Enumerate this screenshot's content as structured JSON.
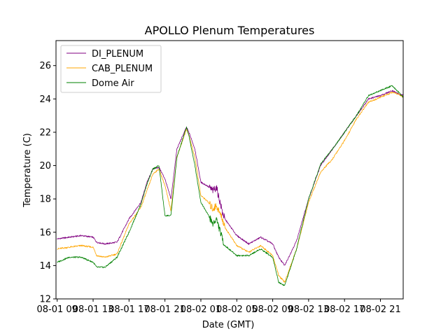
{
  "chart_data": {
    "type": "line",
    "title": "APOLLO Plenum Temperatures",
    "xlabel": "Date (GMT)",
    "ylabel": "Temperature (C)",
    "xlim": [
      -0.1,
      28.9
    ],
    "ylim": [
      12,
      27.5
    ],
    "x_ticks": [
      {
        "at": 0,
        "label": "08-01 09"
      },
      {
        "at": 3,
        "label": "08-01 13"
      },
      {
        "at": 6,
        "label": "08-01 17"
      },
      {
        "at": 9,
        "label": "08-01 21"
      },
      {
        "at": 12,
        "label": "08-02 01"
      },
      {
        "at": 15,
        "label": "08-02 05"
      },
      {
        "at": 18,
        "label": "08-02 09"
      },
      {
        "at": 21,
        "label": "08-02 13"
      },
      {
        "at": 24,
        "label": "08-02 17"
      },
      {
        "at": 27,
        "label": "08-02 21"
      }
    ],
    "y_ticks": [
      12,
      14,
      16,
      18,
      20,
      22,
      24,
      26
    ],
    "legend_position": "top-left",
    "series": [
      {
        "name": "DI_PLENUM",
        "color": "#800080",
        "x": [
          0,
          1,
          2,
          3,
          3.3,
          4,
          5,
          6,
          7,
          7.5,
          8,
          8.5,
          9,
          9.5,
          10,
          10.8,
          11,
          11.5,
          12,
          12.5,
          13,
          13.3,
          13.8,
          14,
          15,
          16,
          17,
          18,
          18.5,
          19,
          20,
          21,
          22,
          23,
          24,
          25,
          26,
          27,
          28,
          28.5,
          28.9
        ],
        "y": [
          15.6,
          15.7,
          15.8,
          15.7,
          15.4,
          15.3,
          15.4,
          16.8,
          17.8,
          19.0,
          19.8,
          19.9,
          19.2,
          18.0,
          21.0,
          22.3,
          22.0,
          21.0,
          19.0,
          18.8,
          18.5,
          18.7,
          17.2,
          16.8,
          15.8,
          15.3,
          15.7,
          15.3,
          14.5,
          14.0,
          15.5,
          18.0,
          20.0,
          21.0,
          22.0,
          23.0,
          24.0,
          24.2,
          24.5,
          24.3,
          24.2
        ]
      },
      {
        "name": "CAB_PLENUM",
        "color": "#ffa500",
        "x": [
          0,
          1,
          2,
          3,
          3.3,
          4,
          5,
          6,
          7,
          7.5,
          8,
          8.5,
          9,
          9.5,
          10,
          10.8,
          11,
          11.5,
          12,
          12.5,
          13,
          13.3,
          13.8,
          14,
          15,
          16,
          17,
          18,
          18.5,
          19,
          20,
          21,
          22,
          23,
          24,
          25,
          26,
          27,
          28,
          28.5,
          28.9
        ],
        "y": [
          15.0,
          15.1,
          15.2,
          15.1,
          14.6,
          14.5,
          14.7,
          16.5,
          17.5,
          18.5,
          19.5,
          19.8,
          18.8,
          17.3,
          20.5,
          22.2,
          21.8,
          20.5,
          18.2,
          17.9,
          17.4,
          17.6,
          16.8,
          16.3,
          15.2,
          14.8,
          15.2,
          14.6,
          13.4,
          13.0,
          15.0,
          17.8,
          19.6,
          20.4,
          21.5,
          22.8,
          23.8,
          24.1,
          24.4,
          24.3,
          24.1
        ]
      },
      {
        "name": "Dome Air",
        "color": "#008000",
        "x": [
          0,
          1,
          2,
          3,
          3.3,
          4,
          5,
          6,
          7,
          7.5,
          8,
          8.5,
          9,
          9.5,
          10,
          10.8,
          11,
          11.5,
          12,
          12.5,
          13,
          13.3,
          13.8,
          14,
          15,
          16,
          17,
          18,
          18.5,
          19,
          20,
          21,
          22,
          23,
          24,
          25,
          26,
          27,
          28,
          28.5,
          28.9
        ],
        "y": [
          14.2,
          14.5,
          14.5,
          14.2,
          13.9,
          13.9,
          14.5,
          16.0,
          17.7,
          18.9,
          19.8,
          20.0,
          17.0,
          17.0,
          20.5,
          22.3,
          21.8,
          20.0,
          17.8,
          17.2,
          16.5,
          16.8,
          15.6,
          15.2,
          14.6,
          14.6,
          15.0,
          14.5,
          13.0,
          12.8,
          15.0,
          18.0,
          20.1,
          21.0,
          22.0,
          23.0,
          24.2,
          24.5,
          24.8,
          24.4,
          24.1
        ]
      }
    ]
  }
}
